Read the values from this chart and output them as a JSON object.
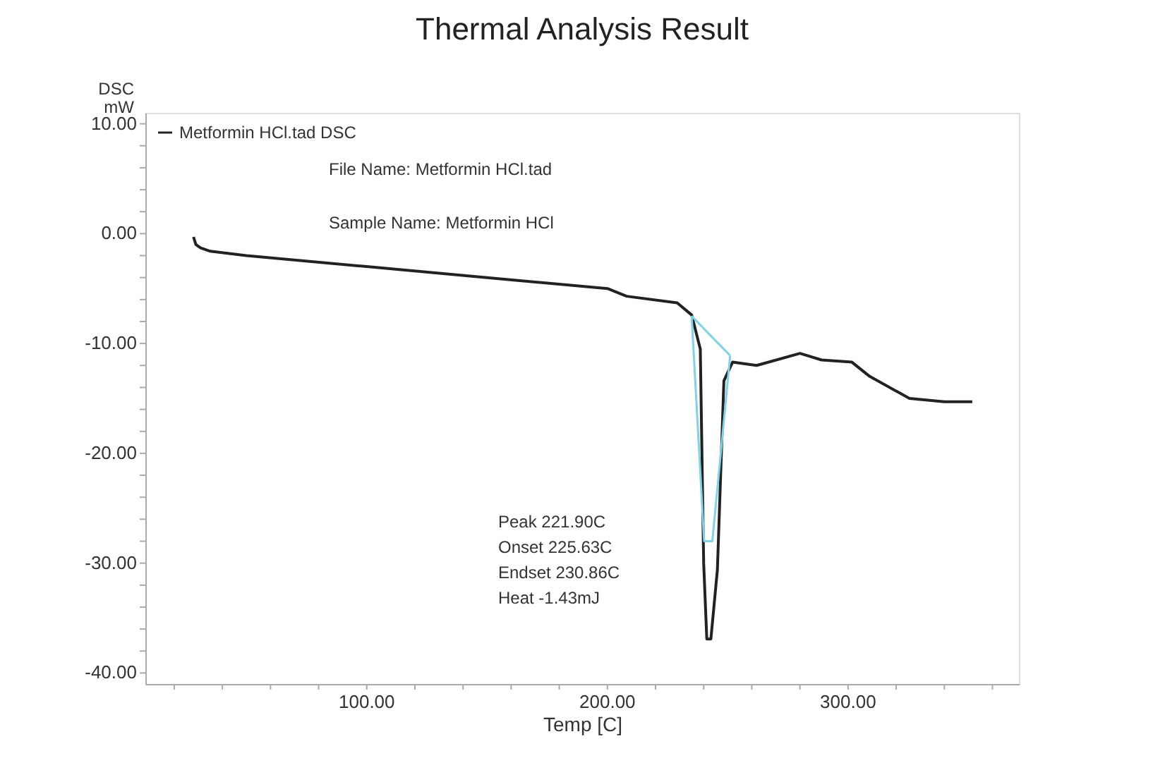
{
  "chart_data": {
    "type": "line",
    "title": "Thermal Analysis Result",
    "xlabel": "Temp [C]",
    "ylabel": "DSC mW",
    "xlim": [
      8,
      371
    ],
    "ylim": [
      -41,
      11
    ],
    "xticks": [
      {
        "value": 100,
        "label": "100.00"
      },
      {
        "value": 200,
        "label": "200.00"
      },
      {
        "value": 300,
        "label": "300.00"
      },
      {
        "value": 20,
        "label": null
      },
      {
        "value": 40,
        "label": null
      },
      {
        "value": 60,
        "label": null
      },
      {
        "value": 80,
        "label": null
      },
      {
        "value": 120,
        "label": null
      },
      {
        "value": 140,
        "label": null
      },
      {
        "value": 160,
        "label": null
      },
      {
        "value": 180,
        "label": null
      },
      {
        "value": 220,
        "label": null
      },
      {
        "value": 240,
        "label": null
      },
      {
        "value": 260,
        "label": null
      },
      {
        "value": 280,
        "label": null
      },
      {
        "value": 320,
        "label": null
      },
      {
        "value": 340,
        "label": null
      },
      {
        "value": 360,
        "label": null
      }
    ],
    "yticks": [
      {
        "value": 10,
        "label": "10.00"
      },
      {
        "value": 0,
        "label": "0.00"
      },
      {
        "value": -10,
        "label": "-10.00"
      },
      {
        "value": -20,
        "label": "-20.00"
      },
      {
        "value": -30,
        "label": "-30.00"
      },
      {
        "value": -40,
        "label": "-40.00"
      },
      {
        "value": 8,
        "label": null
      },
      {
        "value": 6,
        "label": null
      },
      {
        "value": 4,
        "label": null
      },
      {
        "value": 2,
        "label": null
      },
      {
        "value": -2,
        "label": null
      },
      {
        "value": -4,
        "label": null
      },
      {
        "value": -6,
        "label": null
      },
      {
        "value": -8,
        "label": null
      },
      {
        "value": -12,
        "label": null
      },
      {
        "value": -14,
        "label": null
      },
      {
        "value": -16,
        "label": null
      },
      {
        "value": -18,
        "label": null
      },
      {
        "value": -22,
        "label": null
      },
      {
        "value": -24,
        "label": null
      },
      {
        "value": -26,
        "label": null
      },
      {
        "value": -28,
        "label": null
      },
      {
        "value": -32,
        "label": null
      },
      {
        "value": -34,
        "label": null
      },
      {
        "value": -36,
        "label": null
      },
      {
        "value": -38,
        "label": null
      }
    ],
    "legend": "top left",
    "marker": "none",
    "line_style": "solid",
    "grid": false,
    "series": [
      {
        "name": "Metformin HCl.tad DSC",
        "color": "#222222",
        "x": [
          28,
          29,
          31,
          35,
          50,
          100,
          150,
          200,
          208,
          229,
          235,
          238.6,
          240,
          241.3,
          243,
          245.7,
          248.4,
          252,
          262,
          280,
          289,
          301.6,
          309,
          325.5,
          340,
          351.6
        ],
        "values": [
          -0.3,
          -1.0,
          -1.3,
          -1.6,
          -2.0,
          -3.0,
          -4.0,
          -5.0,
          -5.7,
          -6.3,
          -7.4,
          -10.5,
          -30,
          -36.9,
          -36.9,
          -30.6,
          -13.4,
          -11.7,
          -12.0,
          -10.9,
          -11.5,
          -11.7,
          -13.0,
          -15.0,
          -15.3,
          -15.3
        ]
      },
      {
        "color": "#7fd3e6",
        "x": [
          235,
          251
        ],
        "values": [
          -7.5,
          -11.1
        ]
      },
      {
        "color": "#7fd3e6",
        "x": [
          235,
          240.2,
          243.6,
          251
        ],
        "values": [
          -7.5,
          -28,
          -28,
          -11.1
        ]
      }
    ],
    "annotations": [
      "File Name: Metformin HCl.tad",
      "Sample Name: Metformin HCl",
      "Peak   221.90C",
      "Onset  225.63C",
      "Endset 230.86C",
      "Heat    -1.43mJ"
    ]
  }
}
